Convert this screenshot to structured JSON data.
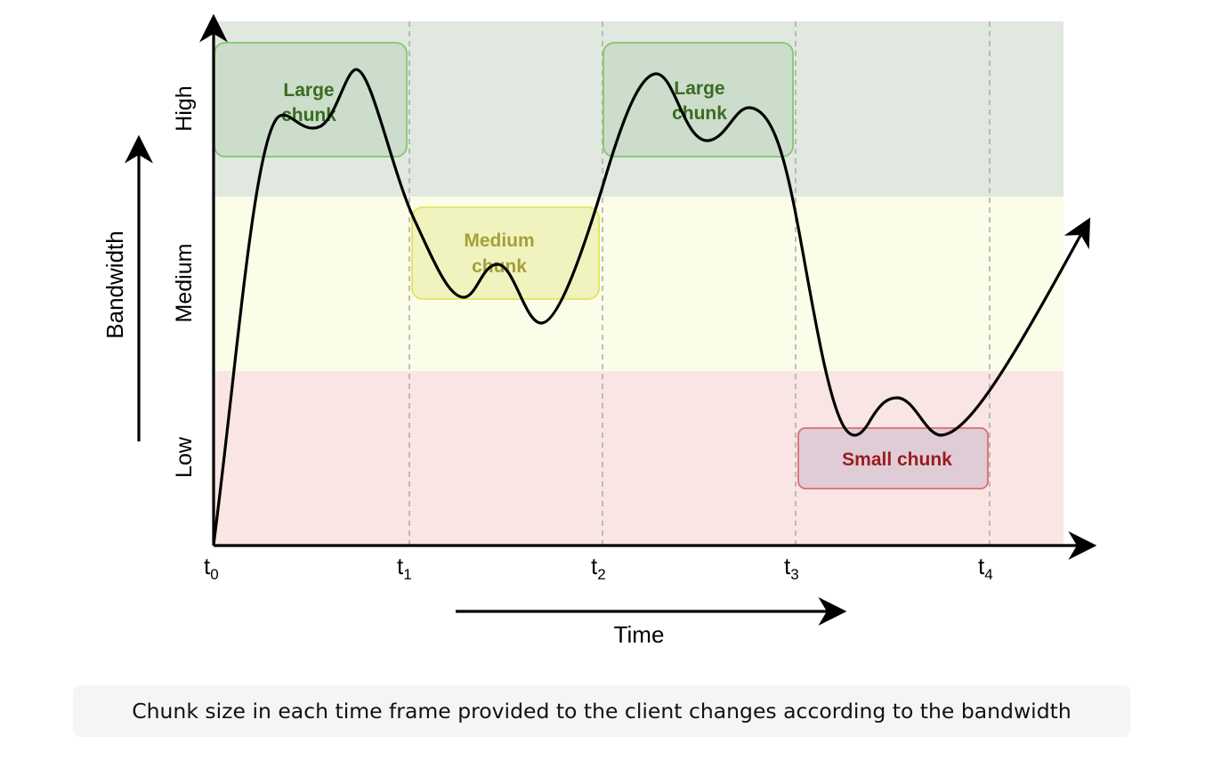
{
  "bands": {
    "high": {
      "label": "High",
      "color": "#e0e8e0"
    },
    "medium": {
      "label": "Medium",
      "color": "#fbfde8"
    },
    "low": {
      "label": "Low",
      "color": "#fae5e5"
    }
  },
  "axes": {
    "y_title": "Bandwidth",
    "x_title": "Time"
  },
  "ticks": [
    {
      "base": "t",
      "sub": "0"
    },
    {
      "base": "t",
      "sub": "1"
    },
    {
      "base": "t",
      "sub": "2"
    },
    {
      "base": "t",
      "sub": "3"
    },
    {
      "base": "t",
      "sub": "4"
    }
  ],
  "chunks": {
    "large_1": {
      "line1": "Large",
      "line2": "chunk",
      "fill": "#ccddcc",
      "stroke": "#82c86a",
      "text_color": "#3a6b1f"
    },
    "medium": {
      "line1": "Medium",
      "line2": "chunk",
      "fill": "#f1f3bf",
      "stroke": "#e6e25a",
      "text_color": "#a3a03c"
    },
    "large_2": {
      "line1": "Large",
      "line2": "chunk",
      "fill": "#ccddcc",
      "stroke": "#82c86a",
      "text_color": "#3a6b1f"
    },
    "small": {
      "label": "Small chunk",
      "fill": "#e0ccd6",
      "stroke": "#dc6e6e",
      "text_color": "#9a1c1c"
    }
  },
  "caption": "Chunk size in each time frame provided to the client changes according to the bandwidth"
}
